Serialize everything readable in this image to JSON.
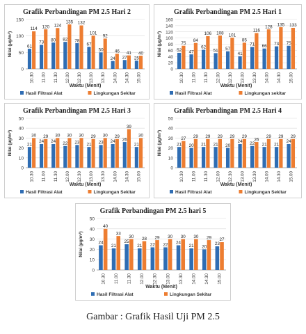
{
  "colors": {
    "alat": "#2f6db3",
    "sekitar": "#ed7d31"
  },
  "caption": "Gambar : Grafik Hasil Uji PM 2.5",
  "chart_data": [
    {
      "type": "bar",
      "title": "Grafik Perbandingan PM 2.5 Hari 2",
      "xlabel": "Waktu (Menit)",
      "ylabel": "Nilai (µg/m³)",
      "ylim": [
        0,
        150
      ],
      "yticks": [
        0,
        50,
        100,
        150
      ],
      "ytick_labels": [
        "0",
        "50",
        "100",
        "150"
      ],
      "categories": [
        "10.30",
        "11.00",
        "11.30",
        "12.00",
        "12.30",
        "13.00",
        "13.30",
        "14.00",
        "14.30",
        "15.00"
      ],
      "series": [
        {
          "name": "Hasil Filtrasi Alat",
          "values": [
            61,
            73,
            80,
            82,
            78,
            67,
            50,
            24,
            27,
            25
          ]
        },
        {
          "name": "Lingkungan Sekitar",
          "values": [
            114,
            120,
            124,
            135,
            132,
            101,
            92,
            46,
            41,
            40
          ]
        }
      ],
      "legend": "bottom",
      "grid": true
    },
    {
      "type": "bar",
      "title": "Grafik Perbandingan PM 2.5 Hari 1",
      "xlabel": "Waktu (Menit)",
      "ylabel": "Nilai (µg/m³)",
      "ylim": [
        0,
        160
      ],
      "yticks": [
        0,
        20,
        40,
        60,
        80,
        100,
        120,
        140,
        160
      ],
      "ytick_labels": [
        "0",
        "20",
        "40",
        "60",
        "80",
        "100",
        "120",
        "140",
        "160"
      ],
      "categories": [
        "10.30",
        "11.00",
        "11.30",
        "12.00",
        "12.30",
        "13.00",
        "13.30",
        "14.00",
        "14.30",
        "15.00"
      ],
      "series": [
        {
          "name": "Hasil Filtrasi Alat",
          "values": [
            52,
            47,
            62,
            51,
            57,
            41,
            71,
            66,
            73,
            75
          ]
        },
        {
          "name": "Lingkungan sekitar",
          "values": [
            75,
            84,
            106,
            108,
            101,
            85,
            116,
            128,
            135,
            133
          ]
        }
      ],
      "legend": "bottom",
      "grid": true
    },
    {
      "type": "bar",
      "title": "Grafik Perbandingan PM 2.5 Hari 3",
      "xlabel": "Waktu (Menit)",
      "ylabel": "Nilai (µg/m³)",
      "ylim": [
        0,
        50
      ],
      "yticks": [
        0,
        10,
        20,
        30,
        40,
        50
      ],
      "ytick_labels": [
        "0",
        "10",
        "20",
        "30",
        "40",
        "50"
      ],
      "categories": [
        "10.30",
        "11.00",
        "11.30",
        "12.00",
        "12.30",
        "13.00",
        "13.30",
        "14.00",
        "14.30",
        "15.00"
      ],
      "series": [
        {
          "name": "Hasil Filtrasi Alat",
          "values": [
            21,
            24,
            24,
            22,
            23,
            21,
            23,
            24,
            26,
            21
          ]
        },
        {
          "name": "Lingkungan Sekitar",
          "values": [
            30,
            29,
            30,
            30,
            30,
            29,
            30,
            29,
            39,
            30
          ]
        }
      ],
      "legend": "bottom",
      "grid": true
    },
    {
      "type": "bar",
      "title": "Grafik Perbandingan PM 2.5 Hari 4",
      "xlabel": "Waktu (Menit)",
      "ylabel": "Nilai (µg/m³)",
      "ylim": [
        0,
        50
      ],
      "yticks": [
        0,
        10,
        20,
        30,
        40,
        50
      ],
      "ytick_labels": [
        "0",
        "10",
        "20",
        "30",
        "40",
        "50"
      ],
      "categories": [
        "10.30",
        "11.00",
        "11.30",
        "12.00",
        "12.30",
        "13.00",
        "13.30",
        "14.00",
        "14.30",
        "15.00"
      ],
      "series": [
        {
          "name": "Hasil Filtrasi Alat",
          "values": [
            21,
            20,
            21,
            21,
            20,
            24,
            22,
            21,
            21,
            24
          ]
        },
        {
          "name": "Lingkungan Sekitar",
          "values": [
            27,
            29,
            29,
            29,
            29,
            29,
            26,
            29,
            29,
            29
          ]
        }
      ],
      "legend": "bottom",
      "grid": true
    },
    {
      "type": "bar",
      "title": "Grafik Perbandingan PM 2.5 hari 5",
      "xlabel": "Waktu (Menit)",
      "ylabel": "Nilai (µg/m³)",
      "ylim": [
        0,
        50
      ],
      "yticks": [
        0,
        10,
        20,
        30,
        40,
        50
      ],
      "ytick_labels": [
        "0",
        "10",
        "20",
        "30",
        "40",
        "50"
      ],
      "categories": [
        "10.30",
        "11.00",
        "11.30",
        "12.00",
        "12.30",
        "13.00",
        "13.30",
        "14.00",
        "14.30",
        "15.00"
      ],
      "series": [
        {
          "name": "Hasil Filtrasi Alat",
          "values": [
            24,
            21,
            25,
            21,
            22,
            22,
            24,
            21,
            20,
            23
          ]
        },
        {
          "name": "Lingkungan Sekitar",
          "values": [
            40,
            33,
            30,
            28,
            29,
            30,
            30,
            30,
            29,
            27
          ]
        }
      ],
      "legend": "bottom",
      "grid": true
    }
  ]
}
